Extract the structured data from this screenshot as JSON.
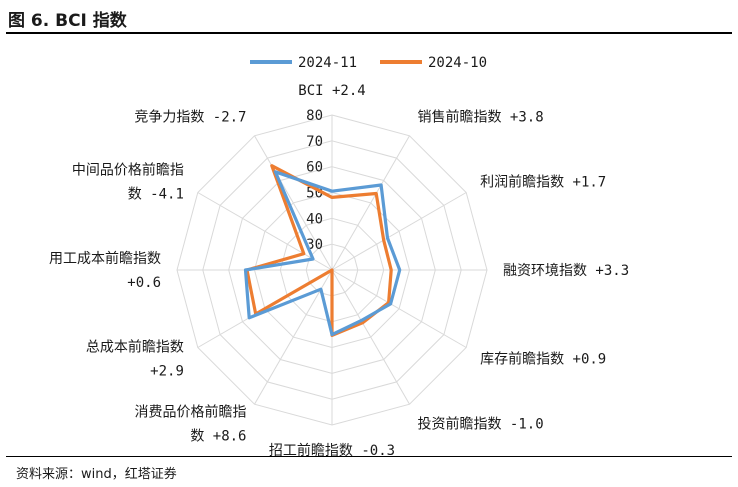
{
  "figure_title": "图 6. BCI 指数",
  "source": "资料来源：wind，红塔证券",
  "chart_data": {
    "type": "radar",
    "title": "",
    "axes": [
      {
        "lines": [
          "BCI +2.4"
        ]
      },
      {
        "lines": [
          "销售前瞻指数 +3.8"
        ]
      },
      {
        "lines": [
          "利润前瞻指数 +1.7"
        ]
      },
      {
        "lines": [
          "融资环境指数 +3.3"
        ]
      },
      {
        "lines": [
          "库存前瞻指数 +0.9"
        ]
      },
      {
        "lines": [
          "投资前瞻指数 -1.0"
        ]
      },
      {
        "lines": [
          "招工前瞻指数 -0.3"
        ]
      },
      {
        "lines": [
          "消费品价格前瞻指",
          "数 +8.6"
        ]
      },
      {
        "lines": [
          "总成本前瞻指数",
          "+2.9"
        ]
      },
      {
        "lines": [
          "用工成本前瞻指数",
          "+0.6"
        ]
      },
      {
        "lines": [
          "中间品价格前瞻指",
          "数 -4.1"
        ]
      },
      {
        "lines": [
          "竞争力指数 -2.7"
        ]
      }
    ],
    "rlim": [
      20,
      80
    ],
    "ticks": [
      30,
      40,
      50,
      60,
      70,
      80
    ],
    "series": [
      {
        "name": "2024-11",
        "color": "#5B9BD5",
        "values": [
          50.5,
          58.0,
          44.8,
          46.2,
          46.2,
          42.6,
          45.0,
          28.6,
          57.0,
          53.5,
          28.5,
          63.9
        ]
      },
      {
        "name": "2024-10",
        "color": "#ED7D31",
        "values": [
          48.1,
          54.2,
          43.1,
          42.9,
          45.3,
          43.6,
          45.3,
          20.0,
          54.1,
          52.9,
          32.6,
          66.6
        ]
      }
    ]
  }
}
